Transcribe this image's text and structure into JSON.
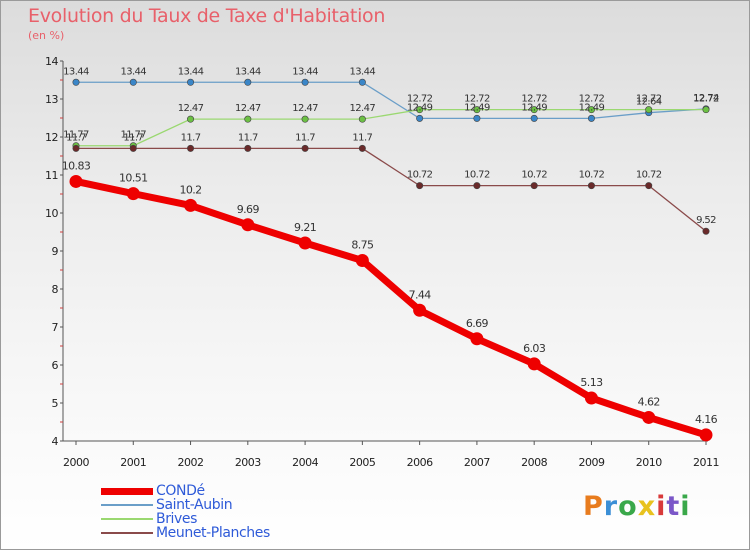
{
  "title": "Evolution du Taux de Taxe d'Habitation",
  "subtitle": "(en %)",
  "logo_text": "Proxiti",
  "logo_colors": [
    "#e87c1e",
    "#3b8fd6",
    "#3aa84a",
    "#e8c21e",
    "#d83a3a",
    "#7b57c8",
    "#3aa84a"
  ],
  "chart_data": {
    "type": "line",
    "title": "Evolution du Taux de Taxe d'Habitation",
    "subtitle": "(en %)",
    "xlabel": "",
    "ylabel": "",
    "x": [
      "2000",
      "2001",
      "2002",
      "2003",
      "2004",
      "2005",
      "2006",
      "2007",
      "2008",
      "2009",
      "2010",
      "2011"
    ],
    "ylim": [
      4,
      14
    ],
    "yticks": [
      "4",
      "5",
      "6",
      "7",
      "8",
      "9",
      "10",
      "11",
      "12",
      "13",
      "14"
    ],
    "grid": false,
    "legend_position": "bottom",
    "series": [
      {
        "name": "Saint-Aubin",
        "color": "#6a9ec8",
        "marker": "#3a86c8",
        "width": 1.3,
        "r": 3.2,
        "values": [
          13.44,
          13.44,
          13.44,
          13.44,
          13.44,
          13.44,
          12.49,
          12.49,
          12.49,
          12.49,
          12.64,
          12.74
        ],
        "labels": [
          "13.44",
          "13.44",
          "13.44",
          "13.44",
          "13.44",
          "13.44",
          "12.49",
          "12.49",
          "12.49",
          "12.49",
          "12.64",
          "12.74"
        ]
      },
      {
        "name": "Brives",
        "color": "#9ad870",
        "marker": "#6cc044",
        "width": 1.3,
        "r": 3.2,
        "values": [
          11.77,
          11.77,
          12.47,
          12.47,
          12.47,
          12.47,
          12.72,
          12.72,
          12.72,
          12.72,
          12.72,
          12.72
        ],
        "labels": [
          "11.77",
          "11.77",
          "12.47",
          "12.47",
          "12.47",
          "12.47",
          "12.72",
          "12.72",
          "12.72",
          "12.72",
          "12.72",
          "12.72"
        ]
      },
      {
        "name": "Meunet-Planches",
        "color": "#8a4a4a",
        "marker": "#6a2a2a",
        "width": 1.3,
        "r": 3.2,
        "values": [
          11.7,
          11.7,
          11.7,
          11.7,
          11.7,
          11.7,
          10.72,
          10.72,
          10.72,
          10.72,
          10.72,
          9.52
        ],
        "labels": [
          "11.7",
          "11.7",
          "11.7",
          "11.7",
          "11.7",
          "11.7",
          "10.72",
          "10.72",
          "10.72",
          "10.72",
          "10.72",
          "9.52"
        ]
      },
      {
        "name": "CONDé",
        "color": "#ee0000",
        "marker": "#ee0000",
        "width": 7,
        "r": 6.5,
        "values": [
          10.83,
          10.51,
          10.2,
          9.69,
          9.21,
          8.75,
          7.44,
          6.69,
          6.03,
          5.13,
          4.62,
          4.16
        ],
        "labels": [
          "10.83",
          "10.51",
          "10.2",
          "9.69",
          "9.21",
          "8.75",
          "7.44",
          "6.69",
          "6.03",
          "5.13",
          "4.62",
          "4.16"
        ]
      }
    ],
    "legend": [
      {
        "name": "CONDé",
        "color": "#ee0000",
        "thickness": 7
      },
      {
        "name": "Saint-Aubin",
        "color": "#6a9ec8",
        "thickness": 2
      },
      {
        "name": "Brives",
        "color": "#9ad870",
        "thickness": 2
      },
      {
        "name": "Meunet-Planches",
        "color": "#8a4a4a",
        "thickness": 2
      }
    ]
  }
}
